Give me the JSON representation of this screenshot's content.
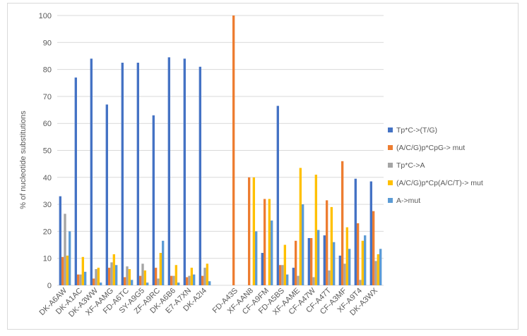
{
  "chart_data": {
    "type": "bar",
    "title": "",
    "xlabel": "",
    "ylabel": "% of nucleotide substitutions",
    "ylim": [
      0,
      100
    ],
    "yticks": [
      0,
      10,
      20,
      30,
      40,
      50,
      60,
      70,
      80,
      90,
      100
    ],
    "grid": true,
    "legend_position": "right",
    "categories": [
      "DK-A6AW",
      "DK-A1AC",
      "DK-A3WW",
      "XF-AAMG",
      "FD-A6TC",
      "SY-A9G5",
      "ZF-A9RC",
      "DK-A6B6",
      "E7-A7XN",
      "DK-A2I4",
      "",
      "FD-A43S",
      "XF-AAN8",
      "CF-A9FM",
      "FD-A5BS",
      "XF-AAME",
      "CF-A47W",
      "CF-A47T",
      "CF-A3MF",
      "XF-A9T4",
      "DK-A3WX"
    ],
    "series": [
      {
        "name": "Tp*C->(T/G)",
        "color": "#4472c4",
        "values": [
          33,
          77,
          84,
          67,
          82.5,
          82.5,
          63,
          84.5,
          84,
          81,
          0,
          0,
          0,
          12,
          66.5,
          6.5,
          17.5,
          18.5,
          11,
          39.5,
          38.5
        ]
      },
      {
        "name": "(A/C/G)p*CpG-> mut",
        "color": "#ed7d31",
        "values": [
          10.5,
          4,
          2.5,
          6.5,
          3,
          3.5,
          6.5,
          3.5,
          3,
          3.5,
          0,
          100,
          40,
          32,
          7.5,
          16.5,
          17.5,
          31.5,
          46,
          23,
          27.5
        ]
      },
      {
        "name": "Tp*C->A",
        "color": "#a5a5a5",
        "values": [
          26.5,
          4,
          6,
          8.5,
          7,
          8,
          2.5,
          3.5,
          3.5,
          6.5,
          0,
          0,
          0,
          0,
          7.5,
          3.5,
          3,
          5.5,
          8,
          2,
          9
        ]
      },
      {
        "name": "(A/C/G)p*Cp(A/C/T)-> mut",
        "color": "#ffc000",
        "values": [
          11,
          10.5,
          6.5,
          11.5,
          6,
          5.5,
          12,
          7.5,
          6.5,
          8,
          0,
          0,
          40,
          32,
          15,
          43.5,
          41,
          29,
          21.5,
          16.5,
          11.5
        ]
      },
      {
        "name": "A->mut",
        "color": "#5b9bd5",
        "values": [
          20,
          5,
          1,
          7.5,
          2,
          1,
          16.5,
          1,
          4,
          1.5,
          0,
          0,
          20,
          24,
          4,
          30,
          20.5,
          16,
          13.5,
          18.5,
          13.5
        ]
      }
    ]
  }
}
